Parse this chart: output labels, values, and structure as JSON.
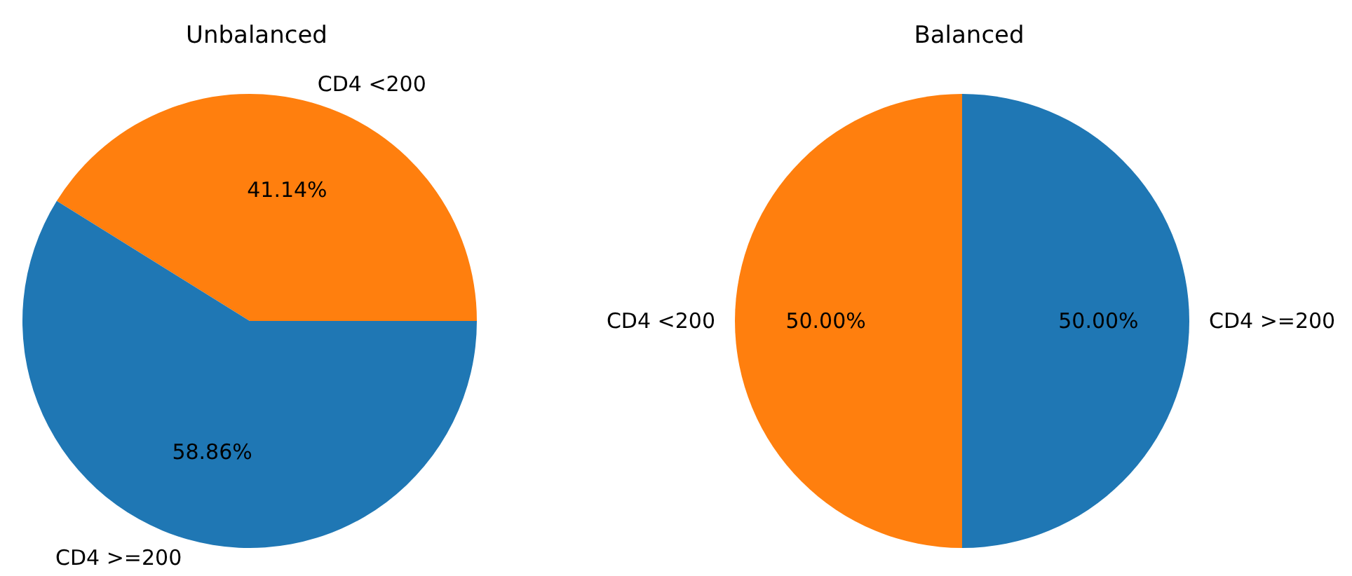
{
  "chart_data": [
    {
      "type": "pie",
      "title": "Unbalanced",
      "categories": [
        "CD4 <200",
        "CD4 >=200"
      ],
      "values": [
        41.14,
        58.86
      ],
      "colors": [
        "#ff7f0e",
        "#1f77b4"
      ],
      "value_labels": [
        "41.14%",
        "58.86%"
      ]
    },
    {
      "type": "pie",
      "title": "Balanced",
      "categories": [
        "CD4 <200",
        "CD4 >=200"
      ],
      "values": [
        50,
        50
      ],
      "colors": [
        "#ff7f0e",
        "#1f77b4"
      ],
      "value_labels": [
        "50.00%",
        "50.00%"
      ]
    }
  ]
}
